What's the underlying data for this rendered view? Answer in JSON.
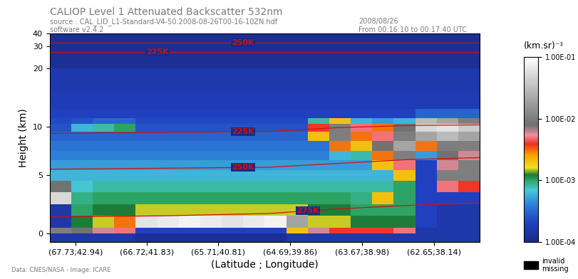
{
  "chart_data": {
    "type": "heatmap",
    "title": "CALIOP Level 1 Attenuated Backscatter 532nm",
    "subtitle_lines": [
      "source : CAL_LID_L1-Standard-V4-50.2008-08-26T00-16-10ZN.hdf",
      "software v2.4.2"
    ],
    "date_lines": [
      "2008/08/26",
      "From 00:16:10 to 00:17:40 UTC"
    ],
    "x_label": "(Latitude ; Longitude)",
    "y_label": "Height (km)",
    "credit": "Data: CNES/NASA - Image: ICARE",
    "xlim": [
      68.1,
      62.0
    ],
    "xticks": [
      {
        "value": 67.73,
        "label": "(67.73;42.94)"
      },
      {
        "value": 66.72,
        "label": "(66.72;41.83)"
      },
      {
        "value": 65.71,
        "label": "(65.71;40.81)"
      },
      {
        "value": 64.69,
        "label": "(64.69;39.86)"
      },
      {
        "value": 63.67,
        "label": "(63.67;38.98)"
      },
      {
        "value": 62.65,
        "label": "(62.65;38.14)"
      }
    ],
    "ylim": [
      -1,
      40
    ],
    "yticks": [
      0,
      5,
      10,
      20,
      30,
      40
    ],
    "lat_edges": [
      68.1,
      67.795,
      67.49,
      67.185,
      66.88,
      66.575,
      66.27,
      65.965,
      65.66,
      65.355,
      65.05,
      64.745,
      64.44,
      64.135,
      63.83,
      63.525,
      63.22,
      62.915,
      62.61,
      62.305,
      62.0
    ],
    "height_edges": [
      -1,
      0,
      0.5,
      1.5,
      2.5,
      3.5,
      4.5,
      5.5,
      6.5,
      7.5,
      8.5,
      9.5,
      10.5,
      11.5,
      13,
      16,
      20,
      40
    ],
    "cells_by_column": [
      [
        0.00015,
        0.01,
        0.00015,
        0.00015,
        0.05,
        0.008,
        0.0006,
        0.0005,
        0.0004,
        0.00035,
        0.0003,
        0.00025,
        0.00022,
        0.0002,
        0.00018,
        0.00016,
        0.00012
      ],
      [
        0.00015,
        0.008,
        0.0012,
        0.001,
        0.0009,
        0.0007,
        0.0006,
        0.0005,
        0.0004,
        0.00035,
        0.0003,
        0.0006,
        0.00025,
        0.0002,
        0.00018,
        0.00016,
        0.00012
      ],
      [
        0.00015,
        0.006,
        0.0015,
        0.0012,
        0.001,
        0.0008,
        0.0006,
        0.0005,
        0.0004,
        0.00035,
        0.0003,
        0.0008,
        0.0003,
        0.0002,
        0.00018,
        0.00016,
        0.00012
      ],
      [
        0.00015,
        0.005,
        0.003,
        0.0012,
        0.001,
        0.0008,
        0.0006,
        0.0005,
        0.0004,
        0.00035,
        0.0003,
        0.001,
        0.0003,
        0.0002,
        0.00018,
        0.00016,
        0.00012
      ],
      [
        0.00012,
        0.0002,
        0.06,
        0.0015,
        0.001,
        0.0008,
        0.0006,
        0.0005,
        0.0004,
        0.00035,
        0.0003,
        0.00025,
        0.00022,
        0.0002,
        0.00018,
        0.00016,
        0.00012
      ],
      [
        0.00012,
        0.0002,
        0.07,
        0.0015,
        0.001,
        0.0008,
        0.0006,
        0.0005,
        0.0004,
        0.00035,
        0.0003,
        0.00025,
        0.00022,
        0.0002,
        0.00018,
        0.00016,
        0.00012
      ],
      [
        0.00012,
        0.0002,
        0.08,
        0.0015,
        0.001,
        0.0008,
        0.0006,
        0.0005,
        0.0004,
        0.00035,
        0.0003,
        0.00025,
        0.00022,
        0.0002,
        0.00018,
        0.00016,
        0.00012
      ],
      [
        0.00012,
        0.0002,
        0.07,
        0.0015,
        0.001,
        0.0008,
        0.0006,
        0.0005,
        0.0004,
        0.00035,
        0.0003,
        0.00025,
        0.00022,
        0.0002,
        0.00018,
        0.00016,
        0.00012
      ],
      [
        0.00012,
        0.0002,
        0.06,
        0.0015,
        0.001,
        0.0008,
        0.0006,
        0.0005,
        0.0004,
        0.00035,
        0.0003,
        0.00025,
        0.00022,
        0.0002,
        0.00018,
        0.00016,
        0.00012
      ],
      [
        0.00012,
        0.0002,
        0.07,
        0.0015,
        0.001,
        0.0008,
        0.0006,
        0.0005,
        0.0004,
        0.00035,
        0.0003,
        0.00025,
        0.00022,
        0.0002,
        0.00018,
        0.00016,
        0.00012
      ],
      [
        0.00012,
        0.0002,
        0.08,
        0.0015,
        0.001,
        0.0008,
        0.0006,
        0.0005,
        0.0004,
        0.00035,
        0.0003,
        0.00025,
        0.00022,
        0.0002,
        0.00018,
        0.00016,
        0.00012
      ],
      [
        0.00015,
        0.002,
        0.02,
        0.0015,
        0.001,
        0.0008,
        0.0006,
        0.0005,
        0.0004,
        0.00035,
        0.0003,
        0.00025,
        0.00022,
        0.0002,
        0.00018,
        0.00016,
        0.00012
      ],
      [
        0.00015,
        0.006,
        0.0015,
        0.0012,
        0.001,
        0.0008,
        0.0006,
        0.0005,
        0.0004,
        0.00035,
        0.002,
        0.004,
        0.0008,
        0.0002,
        0.00018,
        0.00016,
        0.00012
      ],
      [
        0.00015,
        0.004,
        0.0015,
        0.0012,
        0.001,
        0.0008,
        0.0006,
        0.0005,
        0.0006,
        0.003,
        0.01,
        0.01,
        0.002,
        0.0002,
        0.00018,
        0.00016,
        0.00012
      ],
      [
        0.00015,
        0.004,
        0.0012,
        0.001,
        0.0009,
        0.0008,
        0.0006,
        0.0005,
        0.0008,
        0.002,
        0.003,
        0.005,
        0.0006,
        0.0002,
        0.00018,
        0.00016,
        0.00012
      ],
      [
        0.00015,
        0.004,
        0.0012,
        0.001,
        0.002,
        0.0008,
        0.0006,
        0.002,
        0.003,
        0.008,
        0.005,
        0.003,
        0.0005,
        0.0002,
        0.00018,
        0.00016,
        0.00012
      ],
      [
        0.00015,
        0.005,
        0.0012,
        0.001,
        0.001,
        0.001,
        0.002,
        0.005,
        0.01,
        0.02,
        0.01,
        0.008,
        0.0006,
        0.0002,
        0.00018,
        0.00016,
        0.00012
      ],
      [
        0.00015,
        0.00015,
        0.0002,
        0.0002,
        0.0002,
        0.0002,
        0.0002,
        0.0002,
        0.0005,
        0.003,
        0.02,
        0.05,
        0.03,
        0.0003,
        0.00018,
        0.00016,
        0.00012
      ],
      [
        0.00015,
        0.00015,
        0.00015,
        0.00015,
        0.0002,
        0.005,
        0.01,
        0.006,
        0.008,
        0.01,
        0.03,
        0.06,
        0.02,
        0.0003,
        0.00018,
        0.00016,
        0.00012
      ],
      [
        0.00015,
        0.00015,
        0.00015,
        0.00015,
        0.0002,
        0.004,
        0.01,
        0.01,
        0.006,
        0.01,
        0.02,
        0.04,
        0.01,
        0.0003,
        0.00018,
        0.00016,
        0.00012
      ]
    ],
    "isotherms": [
      {
        "label": "275K",
        "x": [
          68.1,
          66.5,
          65.0,
          64.0,
          63.0,
          62.0
        ],
        "heights": [
          1.4,
          1.5,
          1.7,
          2.1,
          2.4,
          2.6
        ]
      },
      {
        "label": "250K",
        "x": [
          68.1,
          66.5,
          65.0,
          64.0,
          63.0,
          62.0
        ],
        "heights": [
          5.6,
          5.7,
          5.8,
          6.2,
          6.6,
          6.8
        ]
      },
      {
        "label": "225K",
        "x": [
          68.1,
          66.5,
          65.0,
          64.0,
          63.0,
          62.0
        ],
        "heights": [
          9.3,
          9.4,
          9.5,
          9.9,
          10.2,
          10.3
        ]
      },
      {
        "label": "225K",
        "x": [
          68.1,
          66.5,
          65.0,
          64.0,
          63.0,
          62.0
        ],
        "heights": [
          27.4,
          27.4,
          27.4,
          27.4,
          27.4,
          27.4
        ]
      },
      {
        "label": "250K",
        "x": [
          68.1,
          66.5,
          65.0,
          64.0,
          63.0,
          62.0
        ],
        "heights": [
          33,
          33,
          33,
          33,
          33,
          33
        ]
      }
    ],
    "isotherm_color": "#d01010",
    "colorbar_label": "(km.sr)⁻¹",
    "colorbar_range": [
      0.0001,
      0.1
    ],
    "colorbar_ticks": [
      {
        "value": 0.0001,
        "label": "1.00E-04"
      },
      {
        "value": 0.001,
        "label": "1.00E-03"
      },
      {
        "value": 0.01,
        "label": "1.00E-02"
      },
      {
        "value": 0.1,
        "label": "1.00E-01"
      }
    ],
    "missing_label": "invalid\nmissing"
  }
}
